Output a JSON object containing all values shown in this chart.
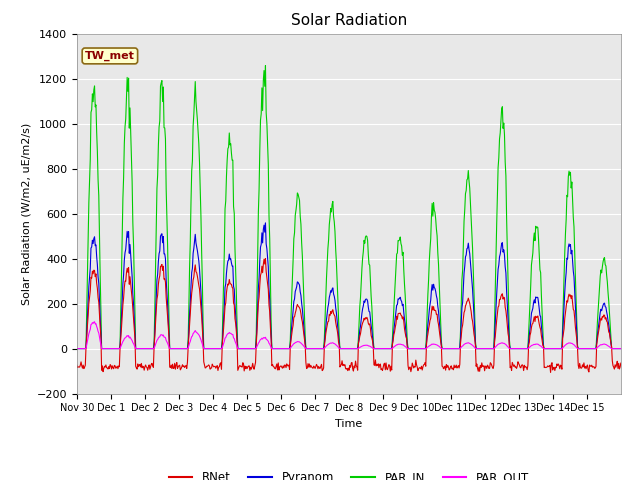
{
  "title": "Solar Radiation",
  "ylabel": "Solar Radiation (W/m2, uE/m2/s)",
  "xlabel": "Time",
  "ylim": [
    -200,
    1400
  ],
  "station_label": "TW_met",
  "fig_facecolor": "#ffffff",
  "plot_bg_color": "#e8e8e8",
  "series": {
    "RNet": {
      "color": "#dd0000",
      "linewidth": 0.8
    },
    "Pyranom": {
      "color": "#0000dd",
      "linewidth": 0.8
    },
    "PAR_IN": {
      "color": "#00cc00",
      "linewidth": 0.8
    },
    "PAR_OUT": {
      "color": "#ff00ff",
      "linewidth": 0.8
    }
  },
  "yticks": [
    -200,
    0,
    200,
    400,
    600,
    800,
    1000,
    1200,
    1400
  ],
  "xtick_labels": [
    "Nov 30",
    "Dec 1",
    "Dec 2",
    "Dec 3",
    "Dec 4",
    "Dec 5",
    "Dec 6",
    "Dec 7",
    "Dec 8",
    "Dec 9",
    "Dec 10",
    "Dec 11",
    "Dec 12",
    "Dec 13",
    "Dec 14",
    "Dec 15"
  ],
  "n_days": 16,
  "par_in_peaks": [
    1175,
    1145,
    1155,
    1110,
    935,
    1250,
    665,
    630,
    500,
    500,
    635,
    760,
    1050,
    545,
    780
  ],
  "pyranom_peaks": [
    500,
    495,
    495,
    475,
    410,
    555,
    285,
    260,
    220,
    230,
    280,
    450,
    460,
    230,
    460
  ],
  "rnet_peaks": [
    355,
    340,
    360,
    350,
    300,
    400,
    185,
    165,
    140,
    160,
    180,
    215,
    240,
    140,
    240
  ],
  "par_out_peaks": [
    120,
    55,
    60,
    75,
    70,
    50,
    30,
    25,
    15,
    20,
    20,
    25,
    25,
    20,
    25
  ],
  "rnet_night": -80
}
